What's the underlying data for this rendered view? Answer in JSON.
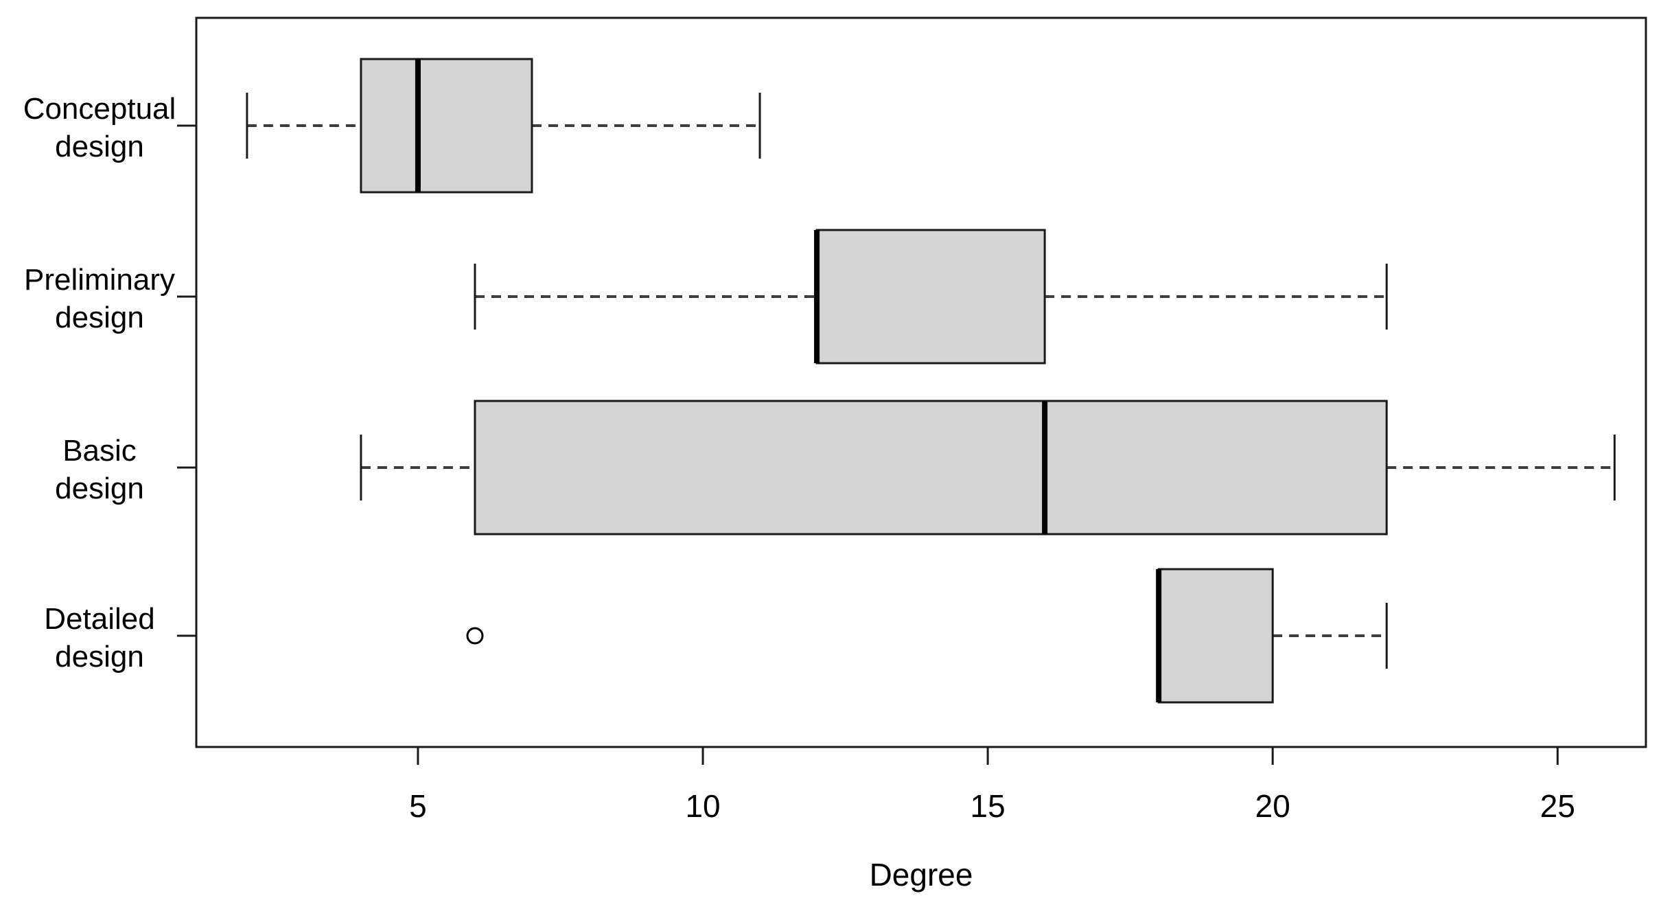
{
  "chart_data": {
    "type": "boxplot",
    "orientation": "horizontal",
    "title": "",
    "xlabel": "Degree",
    "ylabel": "",
    "x_ticks": [
      5,
      10,
      15,
      20,
      25
    ],
    "xlim": [
      1.11,
      26.55
    ],
    "grid": false,
    "legend": "none",
    "categories": [
      {
        "label": "Conceptual design",
        "label_lines": [
          "Conceptual",
          "design"
        ],
        "whisker_low": 2,
        "q1": 4,
        "median": 5,
        "q3": 7,
        "whisker_high": 11,
        "outliers": []
      },
      {
        "label": "Preliminary design",
        "label_lines": [
          "Preliminary",
          "design"
        ],
        "whisker_low": 6,
        "q1": 12,
        "median": 12,
        "q3": 16,
        "whisker_high": 22,
        "outliers": []
      },
      {
        "label": "Basic design",
        "label_lines": [
          "Basic",
          "design"
        ],
        "whisker_low": 4,
        "q1": 6,
        "median": 16,
        "q3": 22,
        "whisker_high": 26,
        "outliers": []
      },
      {
        "label": "Detailed design",
        "label_lines": [
          "Detailed",
          "design"
        ],
        "whisker_low": 18,
        "q1": 18,
        "median": 18,
        "q3": 20,
        "whisker_high": 22,
        "outliers": [
          6
        ]
      }
    ],
    "colors": {
      "background": "#ffffff",
      "box_fill": "#d4d4d4",
      "box_stroke": "#1a1a1a",
      "median": "#000000",
      "whisker": "#3d3d3d",
      "cap": "#1a1a1a",
      "frame": "#1a1a1a",
      "text": "#000000",
      "outlier_stroke": "#000000",
      "outlier_fill": "#ffffff"
    }
  }
}
